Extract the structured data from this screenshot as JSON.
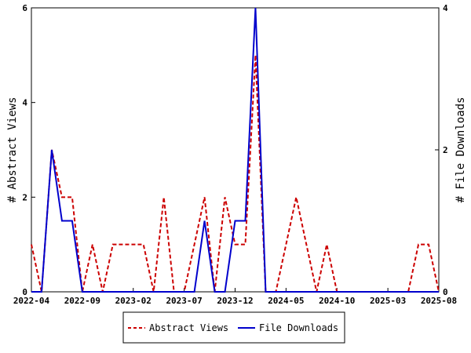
{
  "chart_data": {
    "type": "line",
    "x_labels": [
      "2022-04",
      "2022-09",
      "2023-02",
      "2023-07",
      "2023-12",
      "2024-05",
      "2024-10",
      "2025-03",
      "2025-08"
    ],
    "ylabel_left": "# Abstract Views",
    "ylabel_right": "# File Downloads",
    "ylim_left": [
      0,
      6
    ],
    "ylim_right": [
      0,
      4
    ],
    "yticks_left": [
      0,
      2,
      4,
      6
    ],
    "yticks_right": [
      0,
      2,
      4
    ],
    "grid": false,
    "legend_placement": "bottom-center",
    "series": [
      {
        "name": "Abstract Views",
        "axis": "left",
        "color": "#cc0000",
        "dash": "dashed",
        "values": [
          1,
          0,
          3,
          2,
          2,
          0,
          1,
          0,
          1,
          1,
          1,
          1,
          0,
          2,
          0,
          0,
          1,
          2,
          0,
          2,
          1,
          1,
          5,
          0,
          0,
          1,
          2,
          1,
          0,
          1,
          0,
          0,
          0,
          0,
          0,
          0,
          0,
          0,
          1,
          1,
          0
        ]
      },
      {
        "name": "File Downloads",
        "axis": "right",
        "color": "#0000cc",
        "dash": "solid",
        "values": [
          0,
          0,
          2,
          1,
          1,
          0,
          0,
          0,
          0,
          0,
          0,
          0,
          0,
          0,
          0,
          0,
          0,
          1,
          0,
          0,
          1,
          1,
          4,
          0,
          0,
          0,
          0,
          0,
          0,
          0,
          0,
          0,
          0,
          0,
          0,
          0,
          0,
          0,
          0,
          0,
          0
        ]
      }
    ]
  }
}
